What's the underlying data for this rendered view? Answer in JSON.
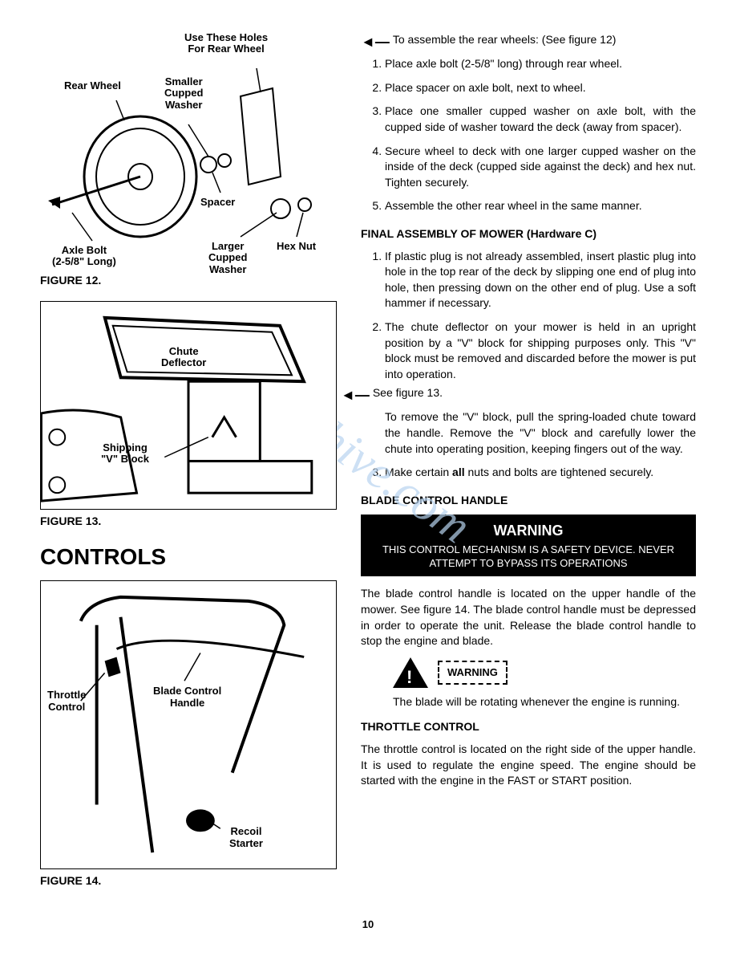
{
  "figures": {
    "fig12": {
      "label": "FIGURE 12.",
      "labels": {
        "holes": "Use These Holes\nFor Rear Wheel",
        "rearWheel": "Rear Wheel",
        "smallerWasher": "Smaller\nCupped\nWasher",
        "spacer": "Spacer",
        "axleBolt": "Axle Bolt\n(2-5/8\" Long)",
        "largerWasher": "Larger\nCupped\nWasher",
        "hexNut": "Hex Nut"
      }
    },
    "fig13": {
      "label": "FIGURE 13.",
      "labels": {
        "chuteDeflector": "Chute\nDeflector",
        "shippingBlock": "Shipping\n\"V\" Block"
      }
    },
    "fig14": {
      "label": "FIGURE 14.",
      "labels": {
        "throttleControl": "Throttle\nControl",
        "bladeControl": "Blade Control\nHandle",
        "recoilStarter": "Recoil\nStarter"
      }
    }
  },
  "controlsHeading": "CONTROLS",
  "rearWheels": {
    "intro": "To assemble the rear wheels: (See figure 12)",
    "steps": [
      "Place axle bolt (2-5/8\" long) through rear wheel.",
      "Place spacer on axle bolt, next to wheel.",
      "Place one smaller cupped washer on axle bolt, with the cupped side of washer toward the deck (away from spacer).",
      "Secure wheel to deck with one larger cupped washer on the inside of the deck (cupped side against the deck) and hex nut. Tighten securely.",
      "Assemble the other rear wheel in the same manner."
    ]
  },
  "finalAssembly": {
    "heading": "FINAL ASSEMBLY OF MOWER (Hardware C)",
    "step1": "If plastic plug is not already assembled, insert plastic plug into hole in the top rear of the deck by slipping one end of plug into hole, then pressing down on the other end of plug. Use a soft hammer if necessary.",
    "step2a": "The chute deflector on your mower is held in an upright position by a \"V\" block for shipping purposes only. This \"V\" block must be removed and discarded before the mower is put into operation.",
    "step2b": "See figure 13.",
    "step2c": "To remove the \"V\" block, pull the spring-loaded chute toward the handle. Remove the \"V\" block and carefully lower the chute into operating position, keeping fingers out of the way.",
    "step3a": "Make certain ",
    "step3bold": "all",
    "step3b": " nuts and bolts are tightened securely."
  },
  "bladeControl": {
    "heading": "BLADE CONTROL HANDLE",
    "warningTitle": "WARNING",
    "warningText": "THIS CONTROL MECHANISM IS A SAFETY DEVICE. NEVER ATTEMPT TO BYPASS ITS OPERATIONS",
    "para": "The blade control handle is located on the upper handle of the mower. See figure 14. The blade control handle must be depressed in order to operate the unit. Release the blade control handle to stop the engine and blade.",
    "warningBadge": "WARNING",
    "warningNote": "The blade will be rotating whenever the engine is running."
  },
  "throttle": {
    "heading": "THROTTLE CONTROL",
    "para": "The throttle control is located on the right side of the upper handle. It is used to regulate the engine speed. The engine should be started with the engine in the FAST or START position."
  },
  "pageNumber": "10",
  "watermark": "manualshive.com"
}
